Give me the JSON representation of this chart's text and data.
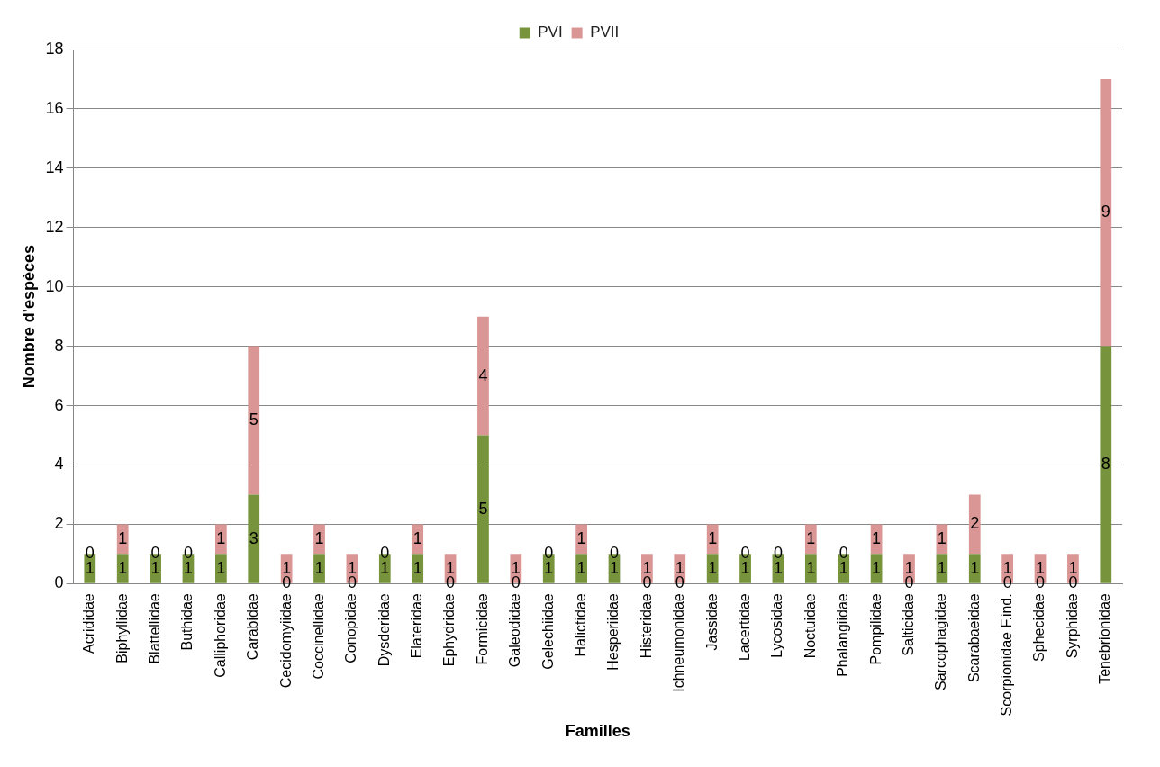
{
  "chart_data": {
    "type": "bar",
    "stacked": true,
    "xlabel": "Familles",
    "ylabel": "Nombre d'espèces",
    "categories": [
      "Acrididae",
      "Biphyllidae",
      "Blattellidae",
      "Buthidae",
      "Calliphoridae",
      "Carabidae",
      "Cecidomyiidae",
      "Coccinellidae",
      "Conopidae",
      "Dysderidae",
      "Elateridae",
      "Ephydridae",
      "Formicidae",
      "Galeodidae",
      "Gelechiidae",
      "Halictidae",
      "Hesperiidae",
      "Histeridae",
      "Ichneumonidae",
      "Jassidae",
      "Lacertidae",
      "Lycosidae",
      "Noctuidae",
      "Phalangiidae",
      "Pompilidae",
      "Salticidae",
      "Sarcophagidae",
      "Scarabaeidae",
      "Scorpionidae F.ind.",
      "Sphecidae",
      "Syrphidae",
      "Tenebrionidae"
    ],
    "series": [
      {
        "name": "PVI",
        "color": "#77933c",
        "values": [
          1,
          1,
          1,
          1,
          1,
          3,
          0,
          1,
          0,
          1,
          1,
          0,
          5,
          0,
          1,
          1,
          1,
          0,
          0,
          1,
          1,
          1,
          1,
          1,
          1,
          0,
          1,
          1,
          0,
          0,
          0,
          8
        ]
      },
      {
        "name": "PVII",
        "color": "#d99694",
        "values": [
          0,
          1,
          0,
          0,
          1,
          5,
          1,
          1,
          1,
          0,
          1,
          1,
          4,
          1,
          0,
          1,
          0,
          1,
          1,
          1,
          0,
          0,
          1,
          0,
          1,
          1,
          1,
          2,
          1,
          1,
          1,
          9
        ]
      }
    ],
    "ylim": [
      0,
      18
    ],
    "yticks": [
      0,
      2,
      4,
      6,
      8,
      10,
      12,
      14,
      16,
      18
    ],
    "grid": "y",
    "legend": "top",
    "data_labels": true
  }
}
